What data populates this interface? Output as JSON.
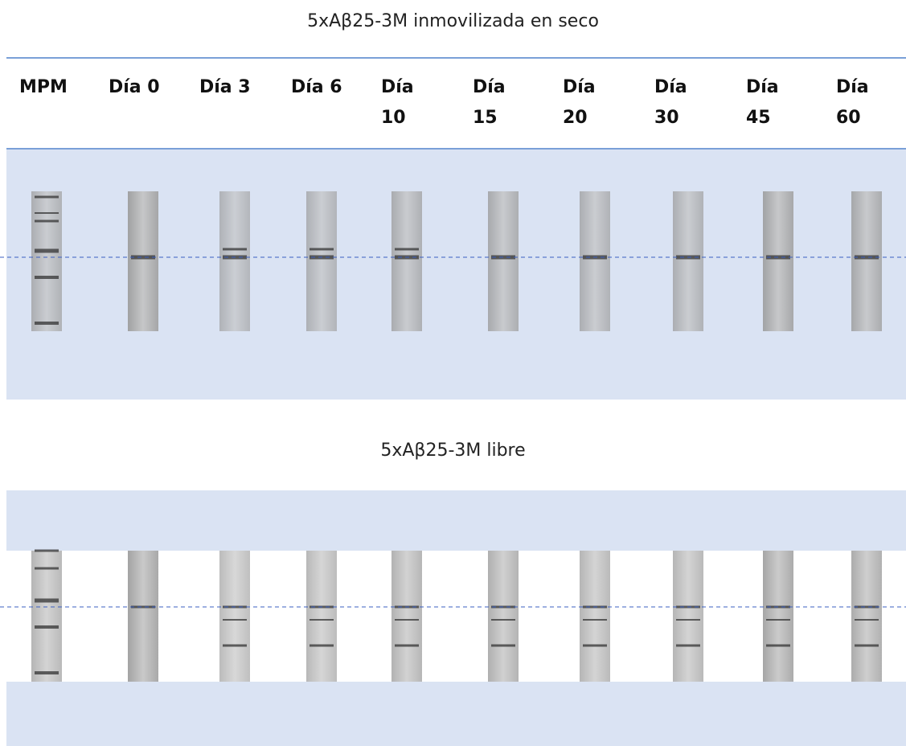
{
  "top_panel": {
    "title": "5xAβ25-3M inmovilizada en seco",
    "columns": [
      "MPM",
      "Día 0",
      "Día 3",
      "Día 6",
      "Día 10",
      "Día 15",
      "Día 20",
      "Día 30",
      "Día 45",
      "Día 60"
    ]
  },
  "bottom_panel": {
    "title": "5xAβ25-3M libre"
  }
}
